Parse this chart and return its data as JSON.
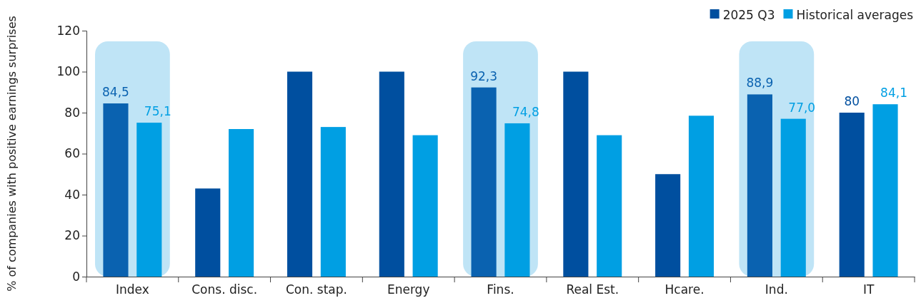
{
  "chart_data": {
    "type": "bar",
    "ylabel": "% of companies with positive earnings surprises",
    "categories": [
      "Index",
      "Cons. disc.",
      "Con. stap.",
      "Energy",
      "Fins.",
      "Real Est.",
      "Hcare.",
      "Ind.",
      "IT"
    ],
    "series": [
      {
        "name": "2025 Q3",
        "color": "#004f9f",
        "colors": [
          "#0a62b0",
          "#004f9f",
          "#004f9f",
          "#004f9f",
          "#0a62b0",
          "#004f9f",
          "#004f9f",
          "#0a62b0",
          "#004f9f"
        ],
        "values": [
          84.5,
          43,
          100,
          100,
          92.3,
          100,
          50,
          88.9,
          80
        ],
        "value_labels": [
          "84,5",
          null,
          null,
          null,
          "92,3",
          null,
          null,
          "88,9",
          "80"
        ]
      },
      {
        "name": "Historical averages",
        "color": "#009fe3",
        "colors": [
          "#009fe3",
          "#009fe3",
          "#009fe3",
          "#009fe3",
          "#009fe3",
          "#009fe3",
          "#009fe3",
          "#009fe3",
          "#009fe3"
        ],
        "values": [
          75.1,
          72,
          73,
          69,
          74.8,
          69,
          78.5,
          77.0,
          84.1
        ],
        "value_labels": [
          "75,1",
          null,
          null,
          null,
          "74,8",
          null,
          null,
          "77,0",
          "84,1"
        ]
      }
    ],
    "ylim": [
      0,
      120
    ],
    "yticks": [
      0,
      20,
      40,
      60,
      80,
      100,
      120
    ],
    "legend": "top right",
    "bands": [
      {
        "axis": "x",
        "from": "Index",
        "to": "Index",
        "color": "#bfe4f6"
      },
      {
        "axis": "x",
        "from": "Fins.",
        "to": "Fins.",
        "color": "#bfe4f6"
      },
      {
        "axis": "x",
        "from": "Ind.",
        "to": "Ind.",
        "color": "#bfe4f6"
      }
    ]
  }
}
